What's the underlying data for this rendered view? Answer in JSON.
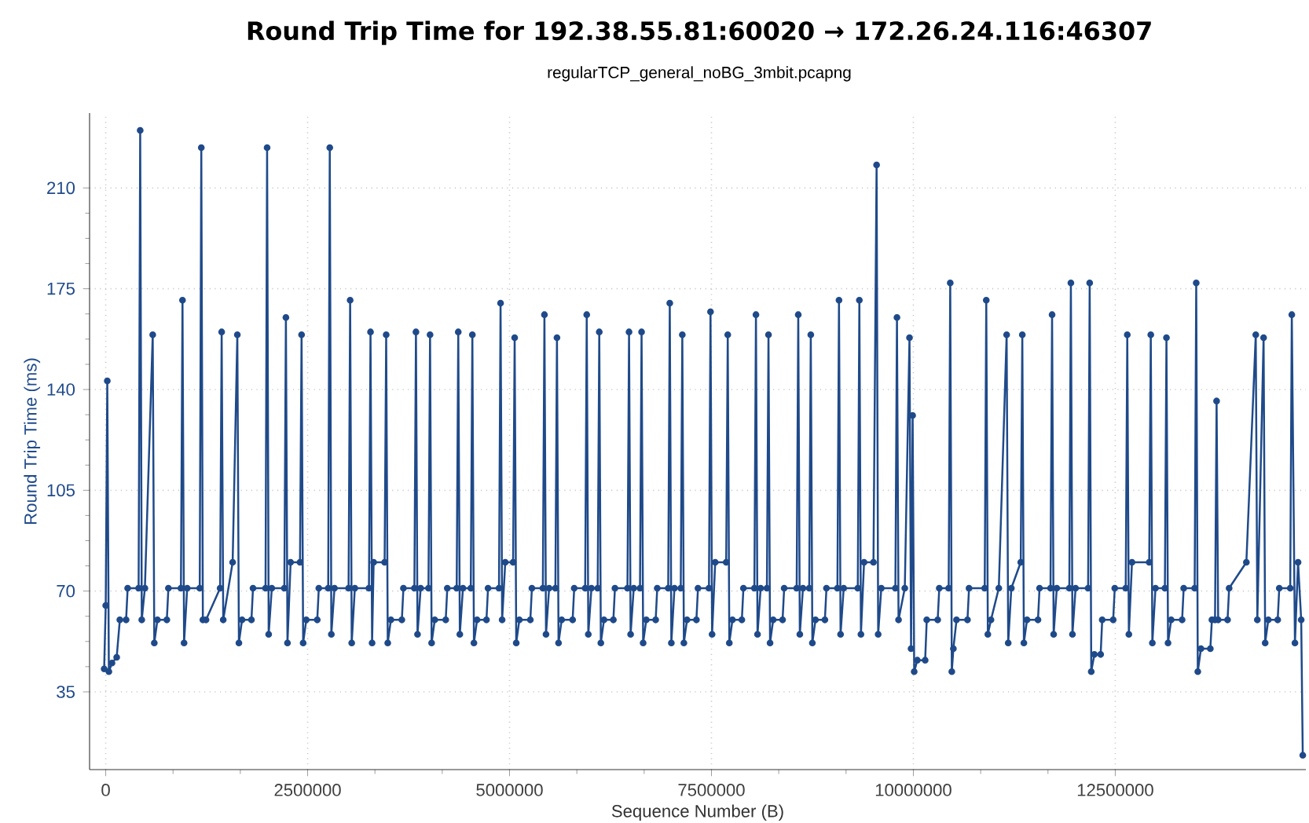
{
  "chart_data": {
    "type": "line",
    "title": "Round Trip Time for 192.38.55.81:60020 → 172.26.24.116:46307",
    "subtitle": "regularTCP_general_noBG_3mbit.pcapng",
    "xlabel": "Sequence Number (B)",
    "ylabel": "Round Trip Time (ms)",
    "xlim": [
      -200000,
      14860000
    ],
    "ylim": [
      8,
      236
    ],
    "xticks": [
      0,
      2500000,
      5000000,
      7500000,
      10000000,
      12500000
    ],
    "yticks": [
      35,
      70,
      105,
      140,
      175,
      210
    ],
    "grid": true,
    "marker": "circle",
    "line_style": "solid",
    "x": [
      -19400,
      0,
      19400,
      38800,
      77600,
      135800,
      174600,
      252200,
      271600,
      407400,
      426800,
      446200,
      485000,
      582000,
      601400,
      640200,
      756600,
      776000,
      931200,
      950600,
      970000,
      1008800,
      1164000,
      1183400,
      1202800,
      1241600,
      1416200,
      1435600,
      1455000,
      1571400,
      1629600,
      1649000,
      1687800,
      1804200,
      1823600,
      1978800,
      1998200,
      2017600,
      2056400,
      2211600,
      2231000,
      2250400,
      2289200,
      2405600,
      2425000,
      2444400,
      2483200,
      2619000,
      2638400,
      2754800,
      2774200,
      2793600,
      2832400,
      3007000,
      3026400,
      3045800,
      3084600,
      3259200,
      3278600,
      3298000,
      3317400,
      3453200,
      3472600,
      3492000,
      3530800,
      3666600,
      3686000,
      3821800,
      3841200,
      3860600,
      3899400,
      3996400,
      4015800,
      4035200,
      4074000,
      4209800,
      4229200,
      4345600,
      4365000,
      4384400,
      4423200,
      4520200,
      4539600,
      4559000,
      4597800,
      4714200,
      4733600,
      4869400,
      4888800,
      4908200,
      4947000,
      5044000,
      5063400,
      5082800,
      5121600,
      5257400,
      5276800,
      5412600,
      5432000,
      5451400,
      5490200,
      5567800,
      5587200,
      5606600,
      5645400,
      5781200,
      5800600,
      5936400,
      5955800,
      5975200,
      6014000,
      6091600,
      6111000,
      6130400,
      6169200,
      6285600,
      6305000,
      6460200,
      6479600,
      6499000,
      6537800,
      6615400,
      6634800,
      6654200,
      6693000,
      6809400,
      6828800,
      6964600,
      6984000,
      7003400,
      7042200,
      7119800,
      7139200,
      7158600,
      7197400,
      7313800,
      7333200,
      7469000,
      7488400,
      7507800,
      7546600,
      7682400,
      7701800,
      7721200,
      7760000,
      7876400,
      7895800,
      8031600,
      8051000,
      8070400,
      8109200,
      8186800,
      8206200,
      8225600,
      8264400,
      8380800,
      8400200,
      8555400,
      8574800,
      8594200,
      8633000,
      8710600,
      8730000,
      8749400,
      8788200,
      8904600,
      8924000,
      9059800,
      9079200,
      9098600,
      9137400,
      9312000,
      9331400,
      9350800,
      9389600,
      9506000,
      9544800,
      9564200,
      9603000,
      9777600,
      9797000,
      9816400,
      9894000,
      9952200,
      9971600,
      9991000,
      10010400,
      10049200,
      10146200,
      10165600,
      10301400,
      10320800,
      10437200,
      10456600,
      10476000,
      10495400,
      10534200,
      10670000,
      10689400,
      10883400,
      10902800,
      10922200,
      10961000,
      11058000,
      11155000,
      11174400,
      11213200,
      11329600,
      11349000,
      11368400,
      11407200,
      11543000,
      11562400,
      11698200,
      11717600,
      11737000,
      11775800,
      11931000,
      11950400,
      11969800,
      12008600,
      12163800,
      12183200,
      12202600,
      12241400,
      12319000,
      12338400,
      12474200,
      12493600,
      12629400,
      12648800,
      12668200,
      12707000,
      12920400,
      12939800,
      12959200,
      12998000,
      13114400,
      13133800,
      13153200,
      13192000,
      13327800,
      13347200,
      13483000,
      13502400,
      13521800,
      13560600,
      13677000,
      13696400,
      13735200,
      13754600,
      13774000,
      13890400,
      13909800,
      14123200,
      14239600,
      14259000,
      14336600,
      14356000,
      14394800,
      14511200,
      14530600,
      14666400,
      14685800,
      14724600,
      14763400,
      14802200,
      14821600
    ],
    "series": [
      {
        "color": "#1f4a8a",
        "values": [
          43,
          65,
          143,
          42,
          45,
          47,
          60,
          60,
          71,
          71,
          230,
          60,
          71,
          159,
          52,
          60,
          60,
          71,
          71,
          171,
          52,
          71,
          71,
          224,
          60,
          60,
          71,
          160,
          60,
          80,
          159,
          52,
          60,
          60,
          71,
          71,
          224,
          55,
          71,
          71,
          165,
          52,
          80,
          80,
          159,
          52,
          60,
          60,
          71,
          71,
          224,
          55,
          71,
          71,
          171,
          52,
          71,
          71,
          160,
          52,
          80,
          80,
          159,
          52,
          60,
          60,
          71,
          71,
          160,
          55,
          71,
          71,
          159,
          52,
          60,
          60,
          71,
          71,
          160,
          55,
          71,
          71,
          159,
          52,
          60,
          60,
          71,
          71,
          170,
          60,
          80,
          80,
          158,
          52,
          60,
          60,
          71,
          71,
          166,
          55,
          71,
          71,
          158,
          52,
          60,
          60,
          71,
          71,
          166,
          55,
          71,
          71,
          160,
          52,
          60,
          60,
          71,
          71,
          160,
          55,
          71,
          71,
          160,
          52,
          60,
          60,
          71,
          71,
          170,
          52,
          71,
          71,
          159,
          52,
          60,
          60,
          71,
          71,
          167,
          55,
          80,
          80,
          159,
          52,
          60,
          60,
          71,
          71,
          166,
          55,
          71,
          71,
          159,
          52,
          60,
          60,
          71,
          71,
          166,
          55,
          71,
          71,
          159,
          52,
          60,
          60,
          71,
          71,
          171,
          55,
          71,
          71,
          171,
          55,
          80,
          80,
          218,
          55,
          71,
          71,
          165,
          60,
          71,
          158,
          50,
          131,
          42,
          46,
          46,
          60,
          60,
          71,
          71,
          177,
          42,
          50,
          60,
          60,
          71,
          71,
          171,
          55,
          60,
          71,
          159,
          52,
          71,
          80,
          159,
          52,
          60,
          60,
          71,
          71,
          166,
          55,
          71,
          71,
          177,
          55,
          71,
          71,
          177,
          42,
          48,
          48,
          60,
          60,
          71,
          71,
          159,
          55,
          80,
          80,
          159,
          52,
          71,
          71,
          158,
          52,
          60,
          60,
          71,
          71,
          177,
          42,
          50,
          50,
          60,
          60,
          136,
          60,
          60,
          71,
          80,
          159,
          60,
          158,
          52,
          60,
          60,
          71,
          71,
          166,
          52,
          80,
          60,
          13
        ]
      }
    ]
  }
}
